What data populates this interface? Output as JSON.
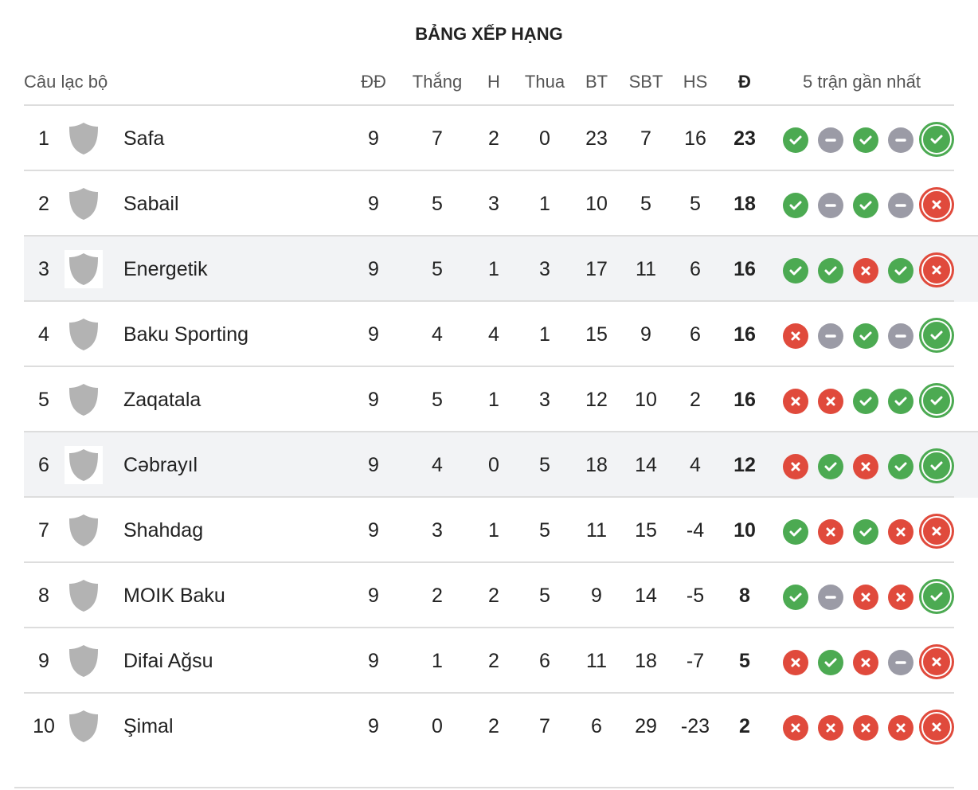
{
  "title": "BẢNG XẾP HẠNG",
  "headers": {
    "club": "Câu lạc bộ",
    "played": "ĐĐ",
    "won": "Thắng",
    "drawn": "H",
    "lost": "Thua",
    "gf": "BT",
    "ga": "SBT",
    "gd": "HS",
    "pts": "Đ",
    "form": "5 trận gần nhất"
  },
  "colors": {
    "win": "#4caa52",
    "draw": "#9b9ba6",
    "loss": "#e04a3c",
    "highlight": "#f2f3f5"
  },
  "rows": [
    {
      "rank": "1",
      "club": "Safa",
      "played": "9",
      "won": "7",
      "drawn": "2",
      "lost": "0",
      "gf": "23",
      "ga": "7",
      "gd": "16",
      "pts": "23",
      "form": [
        "W",
        "D",
        "W",
        "D",
        "W"
      ],
      "highlight": false
    },
    {
      "rank": "2",
      "club": "Sabail",
      "played": "9",
      "won": "5",
      "drawn": "3",
      "lost": "1",
      "gf": "10",
      "ga": "5",
      "gd": "5",
      "pts": "18",
      "form": [
        "W",
        "D",
        "W",
        "D",
        "L"
      ],
      "highlight": false
    },
    {
      "rank": "3",
      "club": "Energetik",
      "played": "9",
      "won": "5",
      "drawn": "1",
      "lost": "3",
      "gf": "17",
      "ga": "11",
      "gd": "6",
      "pts": "16",
      "form": [
        "W",
        "W",
        "L",
        "W",
        "L"
      ],
      "highlight": true
    },
    {
      "rank": "4",
      "club": "Baku Sporting",
      "played": "9",
      "won": "4",
      "drawn": "4",
      "lost": "1",
      "gf": "15",
      "ga": "9",
      "gd": "6",
      "pts": "16",
      "form": [
        "L",
        "D",
        "W",
        "D",
        "W"
      ],
      "highlight": false
    },
    {
      "rank": "5",
      "club": "Zaqatala",
      "played": "9",
      "won": "5",
      "drawn": "1",
      "lost": "3",
      "gf": "12",
      "ga": "10",
      "gd": "2",
      "pts": "16",
      "form": [
        "L",
        "L",
        "W",
        "W",
        "W"
      ],
      "highlight": false
    },
    {
      "rank": "6",
      "club": "Cəbrayıl",
      "played": "9",
      "won": "4",
      "drawn": "0",
      "lost": "5",
      "gf": "18",
      "ga": "14",
      "gd": "4",
      "pts": "12",
      "form": [
        "L",
        "W",
        "L",
        "W",
        "W"
      ],
      "highlight": true
    },
    {
      "rank": "7",
      "club": "Shahdag",
      "played": "9",
      "won": "3",
      "drawn": "1",
      "lost": "5",
      "gf": "11",
      "ga": "15",
      "gd": "-4",
      "pts": "10",
      "form": [
        "W",
        "L",
        "W",
        "L",
        "L"
      ],
      "highlight": false
    },
    {
      "rank": "8",
      "club": "MOIK Baku",
      "played": "9",
      "won": "2",
      "drawn": "2",
      "lost": "5",
      "gf": "9",
      "ga": "14",
      "gd": "-5",
      "pts": "8",
      "form": [
        "W",
        "D",
        "L",
        "L",
        "W"
      ],
      "highlight": false
    },
    {
      "rank": "9",
      "club": "Difai Ağsu",
      "played": "9",
      "won": "1",
      "drawn": "2",
      "lost": "6",
      "gf": "11",
      "ga": "18",
      "gd": "-7",
      "pts": "5",
      "form": [
        "L",
        "W",
        "L",
        "D",
        "L"
      ],
      "highlight": false
    },
    {
      "rank": "10",
      "club": "Şimal",
      "played": "9",
      "won": "0",
      "drawn": "2",
      "lost": "7",
      "gf": "6",
      "ga": "29",
      "gd": "-23",
      "pts": "2",
      "form": [
        "L",
        "L",
        "L",
        "L",
        "L"
      ],
      "highlight": false
    }
  ]
}
